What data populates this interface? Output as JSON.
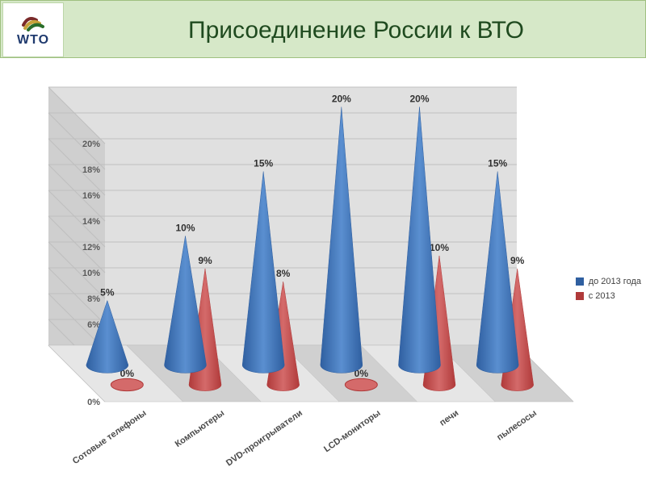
{
  "header": {
    "title": "Присоединение России к ВТО",
    "logo_text": "WTO"
  },
  "chart": {
    "type": "cone-3d",
    "background_color": "#ffffff",
    "floor_color": "#d0d0d0",
    "floor_color_light": "#e6e6e6",
    "back_wall_color": "#e0e0e0",
    "side_wall_color": "#cfcfcf",
    "grid_color": "#bfbfbf",
    "ylim": [
      0,
      20
    ],
    "ytick_step": 2,
    "ytick_suffix": "%",
    "label_fontsize": 11,
    "value_fontsize": 12,
    "categories": [
      "Сотовые телефоны",
      "Компьютеры",
      "DVD-проигрыватели",
      "LCD-мониторы",
      "печи",
      "пылесосы"
    ],
    "series": [
      {
        "name": "до 2013 года",
        "color": "#2f5fa0",
        "color_light": "#5a8fd0",
        "values": [
          5,
          10,
          15,
          20,
          20,
          15
        ]
      },
      {
        "name": "с  2013",
        "color": "#b03a3a",
        "color_light": "#d46a6a",
        "values": [
          0,
          9,
          8,
          0,
          10,
          9
        ]
      }
    ]
  }
}
